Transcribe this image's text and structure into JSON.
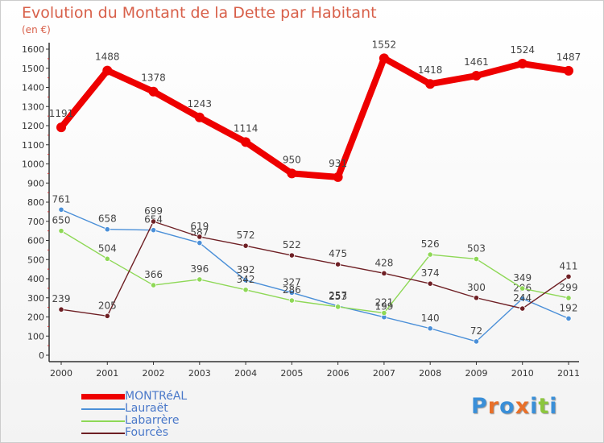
{
  "header": {
    "title": "Evolution du Montant de la Dette par Habitant",
    "subtitle": "(en €)"
  },
  "brand": {
    "letters": [
      "P",
      "r",
      "o",
      "x",
      "i",
      "t",
      "i"
    ],
    "colors": [
      "#3a8fd8",
      "#e8702a",
      "#3a8fd8",
      "#e8702a",
      "#3a8fd8",
      "#8cc63e",
      "#3a8fd8"
    ]
  },
  "colors": {
    "title": "#d8604a",
    "axis": "#333333",
    "grid": "#cccccc",
    "MONTRéAL": "#ee0000",
    "Lauraët": "#4a8fd8",
    "Labarrère": "#8ed856",
    "Fourcès": "#6e1f24"
  },
  "chart_data": {
    "type": "line",
    "title": "Evolution du Montant de la Dette par Habitant",
    "subtitle": "(en €)",
    "xlabel": "",
    "ylabel": "",
    "x": [
      2000,
      2001,
      2002,
      2003,
      2004,
      2005,
      2006,
      2007,
      2008,
      2009,
      2010,
      2011
    ],
    "ylim": [
      0,
      1600
    ],
    "yticks": [
      0,
      100,
      200,
      300,
      400,
      500,
      600,
      700,
      800,
      900,
      1000,
      1100,
      1200,
      1300,
      1400,
      1500,
      1600
    ],
    "grid": false,
    "legend_position": "bottom-left",
    "series": [
      {
        "name": "MONTRéAL",
        "color": "#ee0000",
        "values": [
          1191,
          1488,
          1378,
          1243,
          1114,
          950,
          931,
          1552,
          1418,
          1461,
          1524,
          1487
        ]
      },
      {
        "name": "Lauraët",
        "color": "#4a8fd8",
        "values": [
          761,
          658,
          654,
          587,
          392,
          327,
          257,
          199,
          140,
          72,
          296,
          192
        ]
      },
      {
        "name": "Labarrère",
        "color": "#8ed856",
        "values": [
          650,
          504,
          366,
          396,
          342,
          286,
          253,
          221,
          526,
          503,
          349,
          299
        ]
      },
      {
        "name": "Fourcès",
        "color": "#6e1f24",
        "values": [
          239,
          205,
          699,
          619,
          572,
          522,
          475,
          428,
          374,
          300,
          244,
          411
        ]
      }
    ]
  }
}
